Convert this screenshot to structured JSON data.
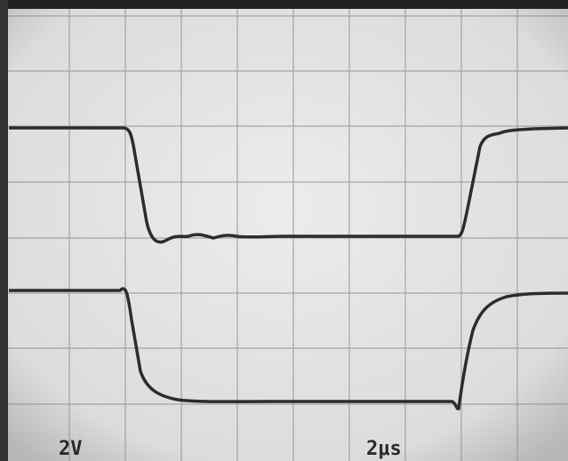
{
  "scope": {
    "volts_per_div": "2V",
    "time_per_div": "2μs"
  }
}
